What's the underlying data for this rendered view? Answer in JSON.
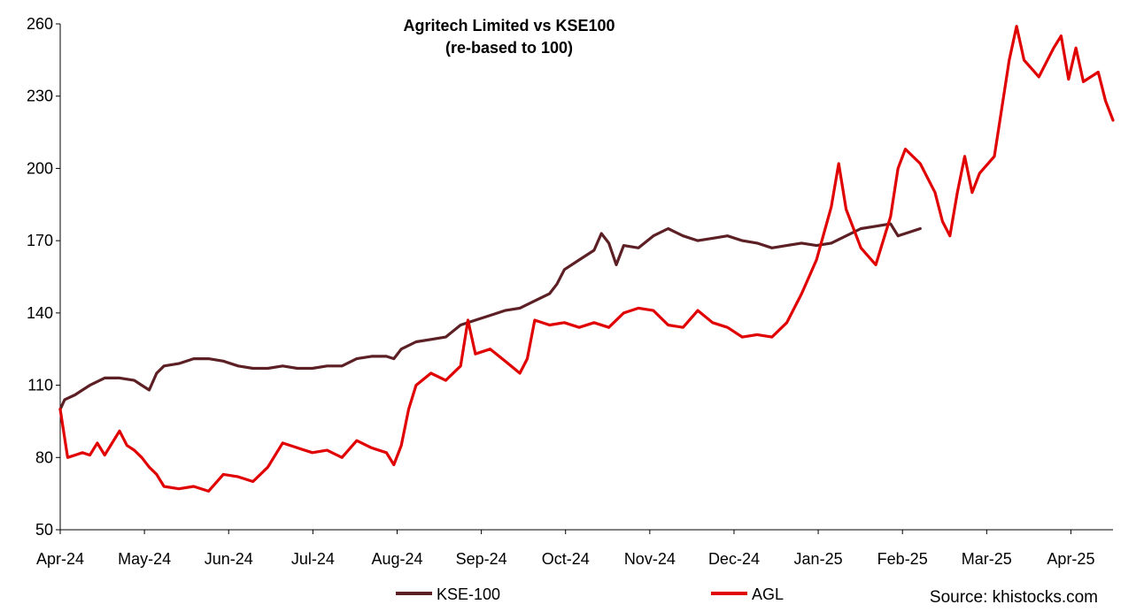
{
  "chart_data": {
    "type": "line",
    "title": "Agritech Limited vs KSE100",
    "subtitle": "(re-based to 100)",
    "source": "Source: khistocks.com",
    "xlabel": "",
    "ylabel": "",
    "ylim": [
      50,
      260
    ],
    "yticks": [
      "50",
      "80",
      "110",
      "140",
      "170",
      "200",
      "230",
      "260"
    ],
    "xtick_labels": [
      "Apr-24",
      "May-24",
      "Jun-24",
      "Jul-24",
      "Aug-24",
      "Sep-24",
      "Oct-24",
      "Nov-24",
      "Dec-24",
      "Jan-25",
      "Feb-25",
      "Mar-25",
      "Apr-25"
    ],
    "grid": false,
    "legend_position": "bottom",
    "series": [
      {
        "name": "KSE-100",
        "color": "#5c1f24",
        "points": [
          [
            0,
            100
          ],
          [
            0.3,
            104
          ],
          [
            1,
            106
          ],
          [
            1.5,
            108
          ],
          [
            2,
            110
          ],
          [
            3,
            113
          ],
          [
            4,
            113
          ],
          [
            5,
            112
          ],
          [
            5.5,
            110
          ],
          [
            6,
            108
          ],
          [
            6.5,
            115
          ],
          [
            7,
            118
          ],
          [
            8,
            119
          ],
          [
            9,
            121
          ],
          [
            10,
            121
          ],
          [
            11,
            120
          ],
          [
            12,
            118
          ],
          [
            13,
            117
          ],
          [
            14,
            117
          ],
          [
            15,
            118
          ],
          [
            16,
            117
          ],
          [
            17,
            117
          ],
          [
            18,
            118
          ],
          [
            19,
            118
          ],
          [
            20,
            121
          ],
          [
            21,
            122
          ],
          [
            22,
            122
          ],
          [
            22.5,
            121
          ],
          [
            23,
            125
          ],
          [
            24,
            128
          ],
          [
            25,
            129
          ],
          [
            26,
            130
          ],
          [
            27,
            135
          ],
          [
            28,
            137
          ],
          [
            29,
            139
          ],
          [
            30,
            141
          ],
          [
            31,
            142
          ],
          [
            32,
            145
          ],
          [
            33,
            148
          ],
          [
            33.5,
            152
          ],
          [
            34,
            158
          ],
          [
            35,
            162
          ],
          [
            36,
            166
          ],
          [
            36.5,
            173
          ],
          [
            37,
            169
          ],
          [
            37.5,
            160
          ],
          [
            38,
            168
          ],
          [
            39,
            167
          ],
          [
            40,
            172
          ],
          [
            41,
            175
          ],
          [
            42,
            172
          ],
          [
            43,
            170
          ],
          [
            44,
            171
          ],
          [
            45,
            172
          ],
          [
            46,
            170
          ],
          [
            47,
            169
          ],
          [
            48,
            167
          ],
          [
            49,
            168
          ],
          [
            50,
            169
          ],
          [
            51,
            168
          ],
          [
            52,
            169
          ],
          [
            53,
            172
          ],
          [
            54,
            175
          ],
          [
            55,
            176
          ],
          [
            56,
            177
          ],
          [
            56.5,
            172
          ],
          [
            57,
            173
          ],
          [
            58,
            175
          ]
        ]
      },
      {
        "name": "AGL",
        "color": "#e00000",
        "points": [
          [
            0,
            100
          ],
          [
            0.5,
            80
          ],
          [
            1,
            81
          ],
          [
            1.5,
            82
          ],
          [
            2,
            81
          ],
          [
            2.5,
            86
          ],
          [
            3,
            81
          ],
          [
            4,
            91
          ],
          [
            4.5,
            85
          ],
          [
            5,
            83
          ],
          [
            5.5,
            80
          ],
          [
            6,
            76
          ],
          [
            6.5,
            73
          ],
          [
            7,
            68
          ],
          [
            8,
            67
          ],
          [
            9,
            68
          ],
          [
            10,
            66
          ],
          [
            11,
            73
          ],
          [
            12,
            72
          ],
          [
            13,
            70
          ],
          [
            14,
            76
          ],
          [
            15,
            86
          ],
          [
            16,
            84
          ],
          [
            17,
            82
          ],
          [
            18,
            83
          ],
          [
            19,
            80
          ],
          [
            20,
            87
          ],
          [
            21,
            84
          ],
          [
            22,
            82
          ],
          [
            22.5,
            77
          ],
          [
            23,
            85
          ],
          [
            23.5,
            100
          ],
          [
            24,
            110
          ],
          [
            25,
            115
          ],
          [
            26,
            112
          ],
          [
            27,
            118
          ],
          [
            27.5,
            137
          ],
          [
            28,
            123
          ],
          [
            29,
            125
          ],
          [
            30,
            120
          ],
          [
            31,
            115
          ],
          [
            31.5,
            121
          ],
          [
            32,
            137
          ],
          [
            33,
            135
          ],
          [
            34,
            136
          ],
          [
            35,
            134
          ],
          [
            36,
            136
          ],
          [
            37,
            134
          ],
          [
            38,
            140
          ],
          [
            39,
            142
          ],
          [
            40,
            141
          ],
          [
            41,
            135
          ],
          [
            42,
            134
          ],
          [
            43,
            141
          ],
          [
            44,
            136
          ],
          [
            45,
            134
          ],
          [
            46,
            130
          ],
          [
            47,
            131
          ],
          [
            48,
            130
          ],
          [
            49,
            136
          ],
          [
            50,
            148
          ],
          [
            51,
            162
          ],
          [
            52,
            184
          ],
          [
            52.5,
            202
          ],
          [
            53,
            183
          ],
          [
            54,
            167
          ],
          [
            55,
            160
          ],
          [
            56,
            180
          ],
          [
            56.5,
            200
          ],
          [
            57,
            208
          ],
          [
            58,
            202
          ],
          [
            59,
            190
          ],
          [
            59.5,
            178
          ],
          [
            60,
            172
          ],
          [
            60.5,
            190
          ],
          [
            61,
            205
          ],
          [
            61.5,
            190
          ],
          [
            62,
            198
          ],
          [
            63,
            205
          ],
          [
            64,
            245
          ],
          [
            64.5,
            259
          ],
          [
            65,
            245
          ],
          [
            66,
            238
          ],
          [
            67,
            250
          ],
          [
            67.5,
            255
          ],
          [
            68,
            237
          ],
          [
            68.5,
            250
          ],
          [
            69,
            236
          ],
          [
            70,
            240
          ],
          [
            70.5,
            228
          ],
          [
            71,
            220
          ]
        ]
      }
    ]
  }
}
